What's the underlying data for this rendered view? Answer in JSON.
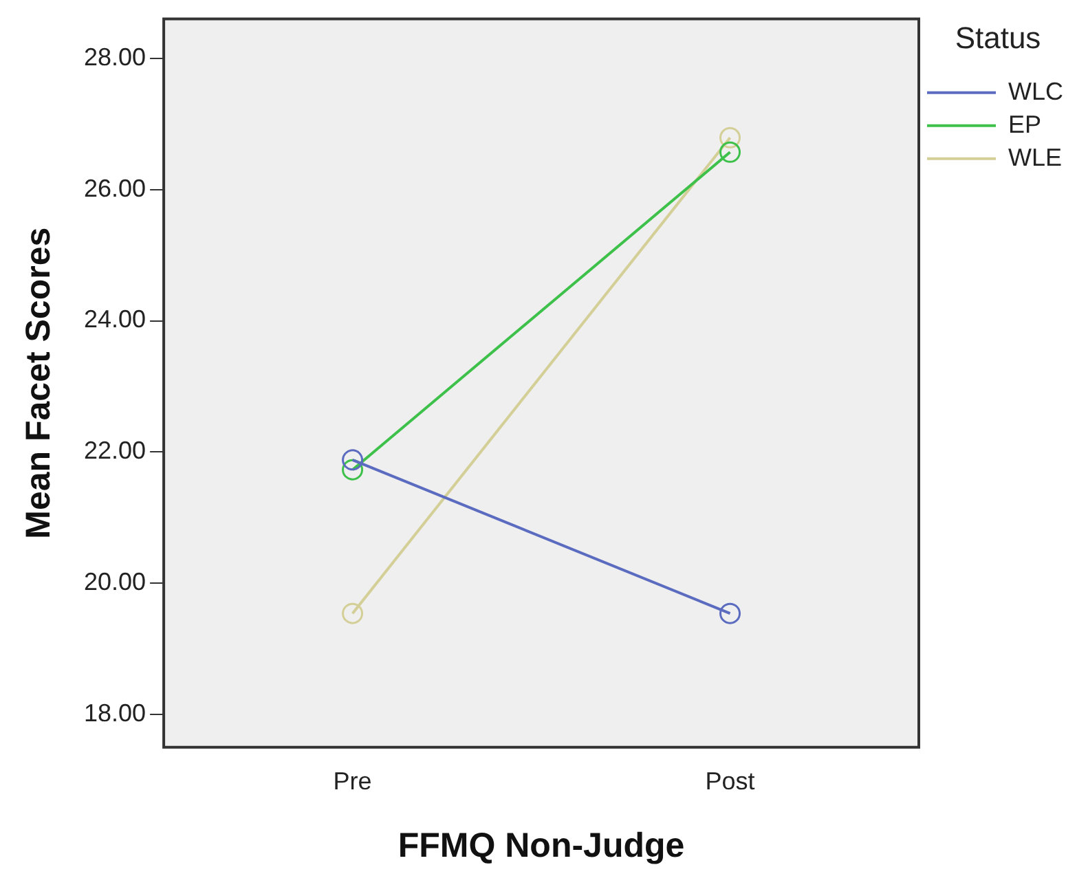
{
  "chart_data": {
    "type": "line",
    "xlabel": "FFMQ Non-Judge",
    "ylabel": "Mean Facet Scores",
    "legend_title": "Status",
    "categories": [
      "Pre",
      "Post"
    ],
    "series": [
      {
        "name": "WLC",
        "color": "#5a6bc0",
        "values": [
          21.88,
          19.54
        ]
      },
      {
        "name": "EP",
        "color": "#3ec14a",
        "values": [
          21.73,
          26.57
        ]
      },
      {
        "name": "WLE",
        "color": "#d4cf96",
        "values": [
          19.54,
          26.79
        ]
      }
    ],
    "ylim": [
      17.5,
      28.6
    ],
    "yticks": [
      {
        "value": 18,
        "label": "18.00"
      },
      {
        "value": 20,
        "label": "20.00"
      },
      {
        "value": 22,
        "label": "22.00"
      },
      {
        "value": 24,
        "label": "24.00"
      },
      {
        "value": 26,
        "label": "26.00"
      },
      {
        "value": 28,
        "label": "28.00"
      }
    ],
    "grid": false,
    "legend": "right",
    "marker": "circle",
    "line_style": "solid"
  }
}
